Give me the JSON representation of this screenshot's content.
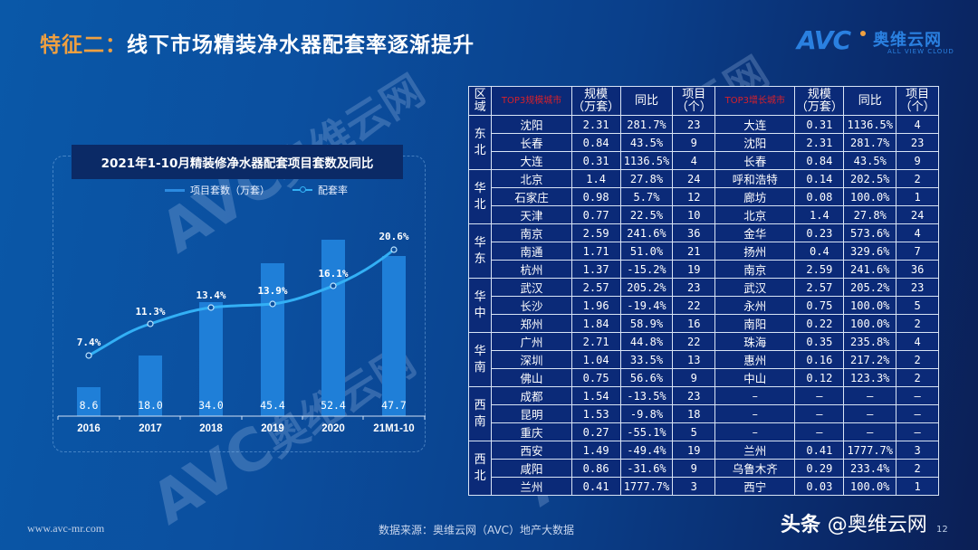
{
  "header": {
    "title_prefix": "特征二：",
    "title_main": "线下市场精装净水器配套率逐渐提升"
  },
  "logo": {
    "mark": "AVC",
    "name_cn": "奥维云网",
    "name_en": "ALL VIEW CLOUD",
    "accent_color": "#f0a040",
    "brand_color": "#2a80e0"
  },
  "chart": {
    "title": "2021年1-10月精装修净水器配套项目套数及同比",
    "legend": {
      "bar": "项目套数（万套）",
      "line": "配套率"
    }
  },
  "chart_data": {
    "type": "bar",
    "title": "2021年1-10月精装修净水器配套项目套数及同比",
    "categories": [
      "2016",
      "2017",
      "2018",
      "2019",
      "2020",
      "21M1-10"
    ],
    "series": [
      {
        "name": "项目套数（万套）",
        "type": "bar",
        "values": [
          8.6,
          18.0,
          34.0,
          45.4,
          52.4,
          47.7
        ],
        "labels": [
          "8.6",
          "18.0",
          "34.0",
          "45.4",
          "52.4",
          "47.7"
        ],
        "color": "#1f7fd8"
      },
      {
        "name": "配套率",
        "type": "line",
        "values": [
          7.4,
          11.3,
          13.4,
          13.9,
          16.1,
          20.6
        ],
        "labels": [
          "7.4%",
          "11.3%",
          "13.4%",
          "13.9%",
          "16.1%",
          "20.6%"
        ],
        "color": "#33b0f5"
      }
    ],
    "xlabel": "",
    "ylabel": "",
    "grid": false,
    "legend_position": "top"
  },
  "table": {
    "headers": {
      "region": "区域",
      "top3_scale": "TOP3规模城市",
      "scale": "规模（万套）",
      "scale_l1": "规模",
      "scale_l2": "（万套）",
      "yoy": "同比",
      "projects_l1": "项目",
      "projects_l2": "（个）",
      "top3_growth": "TOP3增长城市"
    },
    "regions": [
      {
        "name": "东北",
        "l1": "东",
        "l2": "北"
      },
      {
        "name": "华北",
        "l1": "华",
        "l2": "北"
      },
      {
        "name": "华东",
        "l1": "华",
        "l2": "东"
      },
      {
        "name": "华中",
        "l1": "华",
        "l2": "中"
      },
      {
        "name": "华南",
        "l1": "华",
        "l2": "南"
      },
      {
        "name": "西南",
        "l1": "西",
        "l2": "南"
      },
      {
        "name": "西北",
        "l1": "西",
        "l2": "北"
      }
    ],
    "rows": [
      {
        "city_a": "沈阳",
        "scale_a": "2.31",
        "yoy_a": "281.7%",
        "proj_a": "23",
        "city_b": "大连",
        "scale_b": "0.31",
        "yoy_b": "1136.5%",
        "proj_b": "4"
      },
      {
        "city_a": "长春",
        "scale_a": "0.84",
        "yoy_a": "43.5%",
        "proj_a": "9",
        "city_b": "沈阳",
        "scale_b": "2.31",
        "yoy_b": "281.7%",
        "proj_b": "23"
      },
      {
        "city_a": "大连",
        "scale_a": "0.31",
        "yoy_a": "1136.5%",
        "proj_a": "4",
        "city_b": "长春",
        "scale_b": "0.84",
        "yoy_b": "43.5%",
        "proj_b": "9"
      },
      {
        "city_a": "北京",
        "scale_a": "1.4",
        "yoy_a": "27.8%",
        "proj_a": "24",
        "city_b": "呼和浩特",
        "scale_b": "0.14",
        "yoy_b": "202.5%",
        "proj_b": "2"
      },
      {
        "city_a": "石家庄",
        "scale_a": "0.98",
        "yoy_a": "5.7%",
        "proj_a": "12",
        "city_b": "廊坊",
        "scale_b": "0.08",
        "yoy_b": "100.0%",
        "proj_b": "1"
      },
      {
        "city_a": "天津",
        "scale_a": "0.77",
        "yoy_a": "22.5%",
        "proj_a": "10",
        "city_b": "北京",
        "scale_b": "1.4",
        "yoy_b": "27.8%",
        "proj_b": "24"
      },
      {
        "city_a": "南京",
        "scale_a": "2.59",
        "yoy_a": "241.6%",
        "proj_a": "36",
        "city_b": "金华",
        "scale_b": "0.23",
        "yoy_b": "573.6%",
        "proj_b": "4"
      },
      {
        "city_a": "南通",
        "scale_a": "1.71",
        "yoy_a": "51.0%",
        "proj_a": "21",
        "city_b": "扬州",
        "scale_b": "0.4",
        "yoy_b": "329.6%",
        "proj_b": "7"
      },
      {
        "city_a": "杭州",
        "scale_a": "1.37",
        "yoy_a": "-15.2%",
        "proj_a": "19",
        "city_b": "南京",
        "scale_b": "2.59",
        "yoy_b": "241.6%",
        "proj_b": "36"
      },
      {
        "city_a": "武汉",
        "scale_a": "2.57",
        "yoy_a": "205.2%",
        "proj_a": "23",
        "city_b": "武汉",
        "scale_b": "2.57",
        "yoy_b": "205.2%",
        "proj_b": "23"
      },
      {
        "city_a": "长沙",
        "scale_a": "1.96",
        "yoy_a": "-19.4%",
        "proj_a": "22",
        "city_b": "永州",
        "scale_b": "0.75",
        "yoy_b": "100.0%",
        "proj_b": "5"
      },
      {
        "city_a": "郑州",
        "scale_a": "1.84",
        "yoy_a": "58.9%",
        "proj_a": "16",
        "city_b": "南阳",
        "scale_b": "0.22",
        "yoy_b": "100.0%",
        "proj_b": "2"
      },
      {
        "city_a": "广州",
        "scale_a": "2.71",
        "yoy_a": "44.8%",
        "proj_a": "22",
        "city_b": "珠海",
        "scale_b": "0.35",
        "yoy_b": "235.8%",
        "proj_b": "4"
      },
      {
        "city_a": "深圳",
        "scale_a": "1.04",
        "yoy_a": "33.5%",
        "proj_a": "13",
        "city_b": "惠州",
        "scale_b": "0.16",
        "yoy_b": "217.2%",
        "proj_b": "2"
      },
      {
        "city_a": "佛山",
        "scale_a": "0.75",
        "yoy_a": "56.6%",
        "proj_a": "9",
        "city_b": "中山",
        "scale_b": "0.12",
        "yoy_b": "123.3%",
        "proj_b": "2"
      },
      {
        "city_a": "成都",
        "scale_a": "1.54",
        "yoy_a": "-13.5%",
        "proj_a": "23",
        "city_b": "–",
        "scale_b": "–",
        "yoy_b": "–",
        "proj_b": "–"
      },
      {
        "city_a": "昆明",
        "scale_a": "1.53",
        "yoy_a": "-9.8%",
        "proj_a": "18",
        "city_b": "–",
        "scale_b": "–",
        "yoy_b": "–",
        "proj_b": "–"
      },
      {
        "city_a": "重庆",
        "scale_a": "0.27",
        "yoy_a": "-55.1%",
        "proj_a": "5",
        "city_b": "–",
        "scale_b": "–",
        "yoy_b": "–",
        "proj_b": "–"
      },
      {
        "city_a": "西安",
        "scale_a": "1.49",
        "yoy_a": "-49.4%",
        "proj_a": "19",
        "city_b": "兰州",
        "scale_b": "0.41",
        "yoy_b": "1777.7%",
        "proj_b": "3"
      },
      {
        "city_a": "咸阳",
        "scale_a": "0.86",
        "yoy_a": "-31.6%",
        "proj_a": "9",
        "city_b": "乌鲁木齐",
        "scale_b": "0.29",
        "yoy_b": "233.4%",
        "proj_b": "2"
      },
      {
        "city_a": "兰州",
        "scale_a": "0.41",
        "yoy_a": "1777.7%",
        "proj_a": "3",
        "city_b": "西宁",
        "scale_b": "0.03",
        "yoy_b": "100.0%",
        "proj_b": "1"
      }
    ]
  },
  "footer": {
    "url": "www.avc-mr.com",
    "source": "数据来源：奥维云网（AVC）地产大数据",
    "brand_prefix": "头条",
    "brand_handle": "@奥维云网",
    "page_number": "12"
  },
  "watermark": {
    "mark": "AVC",
    "name_cn": "奥维云网",
    "name_en": "ALL VIEW CLOUD"
  }
}
